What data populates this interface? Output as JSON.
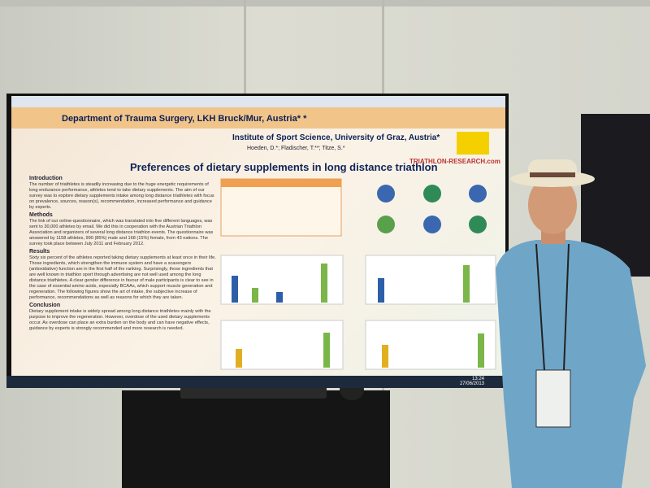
{
  "poster": {
    "affiliation_1": "Department of Trauma Surgery, LKH Bruck/Mur, Austria* *",
    "affiliation_2": "Institute of Sport Science, University of Graz, Austria*",
    "authors": "Hoeden, D.*; Fladischer, T.**; Titze, S.*",
    "title": "Preferences of dietary supplements in long distance triathlon",
    "logo": "TRIATHLON-RESEARCH.com",
    "sections": [
      {
        "heading": "Introduction",
        "text": "The number of triathletes is steadily increasing due to the huge energetic requirements of long endurance performance, athletes tend to take dietary supplements. The aim of our survey was to explore dietary supplements intake among long distance triathletes with focus on prevalence, sources, reason(s), recommendation, increased performance and guidance by experts."
      },
      {
        "heading": "Methods",
        "text": "The link of our online-questionnaire, which was translated into five different languages, was sent to 30,000 athletes by email. We did this in cooperation with the Austrian Triathlon Association and organizers of several long distance triathlon events. The questionnaire was answered by 1158 athletes, 990 (85%) male and 168 (15%) female, from 43 nations. The survey took place between July 2011 and February 2012."
      },
      {
        "heading": "Results",
        "text": "Sixty six percent of the athletes reported taking dietary supplements at least once in their life. Those ingredients, which strengthen the immune system and have a scavengers (antioxidative) function are in the first half of the ranking. Surprisingly, those ingredients that are well known in triathlon sport through advertising are not well used among the long distance triathletes. A clear gender difference in favour of male participants is clear to see in the case of essential amino acids, especially BCAAs, which support muscle generation and regeneration. The following figures show the art of intake, the subjective increase of performance, recommendations as well as reasons for which they are taken."
      },
      {
        "heading": "Conclusion",
        "text": "Dietary supplement intake is widely spread among long distance triathletes mainly with the purpose to improve the regeneration. However, overdose of the used dietary supplements occur. As overdose can place an extra burden on the body and can have negative effects, guidance by experts is strongly recommended and more research is needed."
      }
    ]
  },
  "taskbar": {
    "time": "13:24",
    "date": "27/06/2013"
  }
}
